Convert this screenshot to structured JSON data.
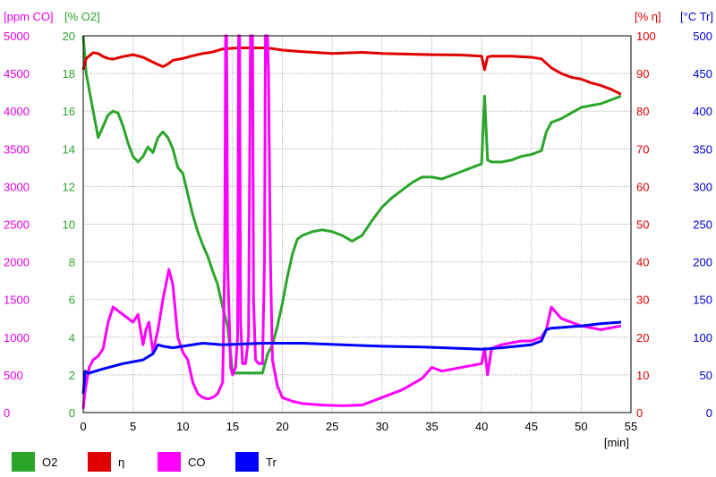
{
  "chart_data": {
    "type": "line",
    "xlabel": "[min]",
    "xlim": [
      0,
      55
    ],
    "xticks": [
      "0",
      "5",
      "10",
      "15",
      "20",
      "25",
      "30",
      "35",
      "40",
      "45",
      "50",
      "55"
    ],
    "grid": true,
    "legend_placement": "bottom",
    "axes": [
      {
        "id": "co",
        "label": "[ppm CO]",
        "color": "#e600e6",
        "side": "left-outer",
        "lim": [
          0,
          5000
        ],
        "ticks": [
          "0",
          "500",
          "1000",
          "1500",
          "2000",
          "2500",
          "3000",
          "3500",
          "4000",
          "4500",
          "5000"
        ]
      },
      {
        "id": "o2",
        "label": "[% O2]",
        "color": "#2aa52a",
        "side": "left-inner",
        "lim": [
          0,
          20
        ],
        "ticks": [
          "0",
          "2",
          "4",
          "6",
          "8",
          "10",
          "12",
          "14",
          "16",
          "18",
          "20"
        ]
      },
      {
        "id": "eta",
        "label": "[% η]",
        "color": "#e00000",
        "side": "right-inner",
        "lim": [
          0,
          100
        ],
        "ticks": [
          "0",
          "10",
          "20",
          "30",
          "40",
          "50",
          "60",
          "70",
          "80",
          "90",
          "100"
        ]
      },
      {
        "id": "tr",
        "label": "[°C Tr]",
        "color": "#0000cc",
        "side": "right-outer",
        "lim": [
          0,
          500
        ],
        "ticks": [
          "0",
          "50",
          "100",
          "150",
          "200",
          "250",
          "300",
          "350",
          "400",
          "450",
          "500"
        ]
      }
    ],
    "series": [
      {
        "name": "O2",
        "axis": "o2",
        "color": "#2aa52a",
        "x": [
          0,
          0.3,
          1,
          1.5,
          2,
          2.5,
          3,
          3.5,
          4,
          4.5,
          5,
          5.5,
          6,
          6.5,
          7,
          7.5,
          8,
          8.5,
          9,
          9.5,
          10,
          10.5,
          11,
          11.5,
          12,
          12.5,
          13,
          13.5,
          14,
          14.5,
          15,
          15.5,
          16,
          16.5,
          17,
          17.5,
          18,
          18.5,
          19,
          19.5,
          20,
          20.5,
          21,
          21.5,
          22,
          23,
          24,
          25,
          26,
          27,
          28,
          29,
          30,
          31,
          32,
          33,
          34,
          35,
          36,
          37,
          38,
          39,
          40,
          40.3,
          40.6,
          41,
          42,
          43,
          44,
          45,
          46,
          46.5,
          47,
          48,
          49,
          50,
          51,
          52,
          53,
          54
        ],
        "y": [
          20,
          18,
          16,
          14.6,
          15.2,
          15.8,
          16.0,
          15.9,
          15.2,
          14.3,
          13.6,
          13.3,
          13.6,
          14.1,
          13.8,
          14.6,
          14.9,
          14.6,
          14.0,
          13.0,
          12.7,
          11.6,
          10.5,
          9.6,
          8.9,
          8.3,
          7.5,
          6.8,
          5.6,
          4.6,
          2.1,
          2.1,
          2.1,
          2.1,
          2.1,
          2.1,
          2.1,
          3.1,
          3.6,
          4.6,
          5.8,
          7.2,
          8.4,
          9.2,
          9.4,
          9.6,
          9.7,
          9.6,
          9.4,
          9.1,
          9.4,
          10.2,
          10.9,
          11.4,
          11.8,
          12.2,
          12.5,
          12.5,
          12.4,
          12.6,
          12.8,
          13.0,
          13.2,
          16.8,
          13.4,
          13.3,
          13.3,
          13.4,
          13.6,
          13.7,
          13.9,
          14.9,
          15.4,
          15.6,
          15.9,
          16.2,
          16.3,
          16.4,
          16.6,
          16.8
        ]
      },
      {
        "name": "η",
        "axis": "eta",
        "color": "#e00000",
        "x": [
          0,
          0.3,
          1,
          1.5,
          2,
          2.5,
          3,
          4,
          5,
          6,
          7,
          8,
          8.5,
          9,
          10,
          11,
          12,
          13,
          14,
          15,
          16,
          17,
          18,
          19,
          20,
          22,
          25,
          28,
          30,
          35,
          38,
          40,
          40.3,
          40.6,
          41,
          43,
          45,
          46,
          47,
          48,
          49,
          50,
          51,
          52,
          53,
          54
        ],
        "y": [
          91,
          94,
          95.5,
          95.3,
          94.5,
          94,
          93.8,
          94.5,
          95,
          94.3,
          93,
          91.8,
          92.5,
          93.5,
          94,
          94.7,
          95.3,
          95.7,
          96.5,
          96.7,
          96.8,
          96.8,
          96.8,
          96.6,
          96.2,
          95.8,
          95.3,
          95.6,
          95.3,
          95,
          94.9,
          94.6,
          91,
          94.4,
          94.6,
          94.6,
          94.3,
          93.9,
          91.5,
          90,
          89,
          88.5,
          87.5,
          86.8,
          85.8,
          84.5
        ]
      },
      {
        "name": "CO",
        "axis": "co",
        "color": "#ff00ff",
        "x": [
          0,
          0.2,
          0.6,
          1,
          1.5,
          2,
          2.5,
          3,
          3.5,
          4,
          4.5,
          5,
          5.5,
          6,
          6.3,
          6.6,
          7,
          7.5,
          8,
          8.3,
          8.6,
          9,
          9.5,
          10,
          10.5,
          11,
          11.5,
          12,
          12.5,
          13,
          13.5,
          14,
          14.2,
          14.3,
          14.4,
          14.5,
          14.8,
          15,
          15.3,
          15.5,
          15.6,
          15.7,
          15.8,
          16,
          16.3,
          16.6,
          16.8,
          16.9,
          17,
          17.1,
          17.3,
          17.6,
          18,
          18.2,
          18.3,
          18.4,
          18.5,
          18.6,
          18.8,
          19,
          19.5,
          20,
          21,
          22,
          24,
          26,
          28,
          30,
          32,
          34,
          35,
          36,
          38,
          40,
          40.3,
          40.6,
          41,
          42,
          44,
          45,
          46,
          46.5,
          47,
          48,
          50,
          52,
          54
        ],
        "y": [
          50,
          300,
          600,
          700,
          750,
          850,
          1200,
          1400,
          1350,
          1300,
          1250,
          1200,
          1300,
          900,
          1100,
          1200,
          800,
          1100,
          1500,
          1700,
          1900,
          1700,
          1000,
          800,
          700,
          400,
          250,
          200,
          180,
          200,
          250,
          400,
          2000,
          5000,
          5000,
          2000,
          600,
          500,
          600,
          1000,
          5000,
          5000,
          1200,
          650,
          650,
          1000,
          5000,
          5000,
          5000,
          1500,
          700,
          650,
          650,
          2000,
          5000,
          5000,
          5000,
          4500,
          2000,
          700,
          350,
          200,
          150,
          120,
          100,
          90,
          100,
          200,
          300,
          450,
          600,
          550,
          600,
          650,
          850,
          500,
          850,
          900,
          950,
          950,
          1000,
          1100,
          1400,
          1250,
          1150,
          1100,
          1150
        ]
      },
      {
        "name": "Tr",
        "axis": "tr",
        "color": "#0000ff",
        "x": [
          0,
          0.2,
          0.5,
          2,
          4,
          6,
          7,
          7.5,
          8,
          9,
          10,
          12,
          14,
          16,
          18,
          20,
          22,
          24,
          26,
          28,
          30,
          34,
          38,
          40,
          42,
          45,
          46,
          46.5,
          47,
          50,
          52,
          54
        ],
        "y": [
          25,
          55,
          52,
          58,
          65,
          70,
          78,
          90,
          88,
          86,
          88,
          92,
          90,
          91,
          92,
          92,
          92,
          91,
          90,
          89,
          88,
          87,
          85,
          84,
          86,
          90,
          95,
          110,
          112,
          115,
          118,
          120
        ]
      }
    ],
    "legend": [
      {
        "name": "O2",
        "color": "#2aa52a"
      },
      {
        "name": "η",
        "color": "#e00000"
      },
      {
        "name": "CO",
        "color": "#ff00ff"
      },
      {
        "name": "Tr",
        "color": "#0000ff"
      }
    ]
  }
}
